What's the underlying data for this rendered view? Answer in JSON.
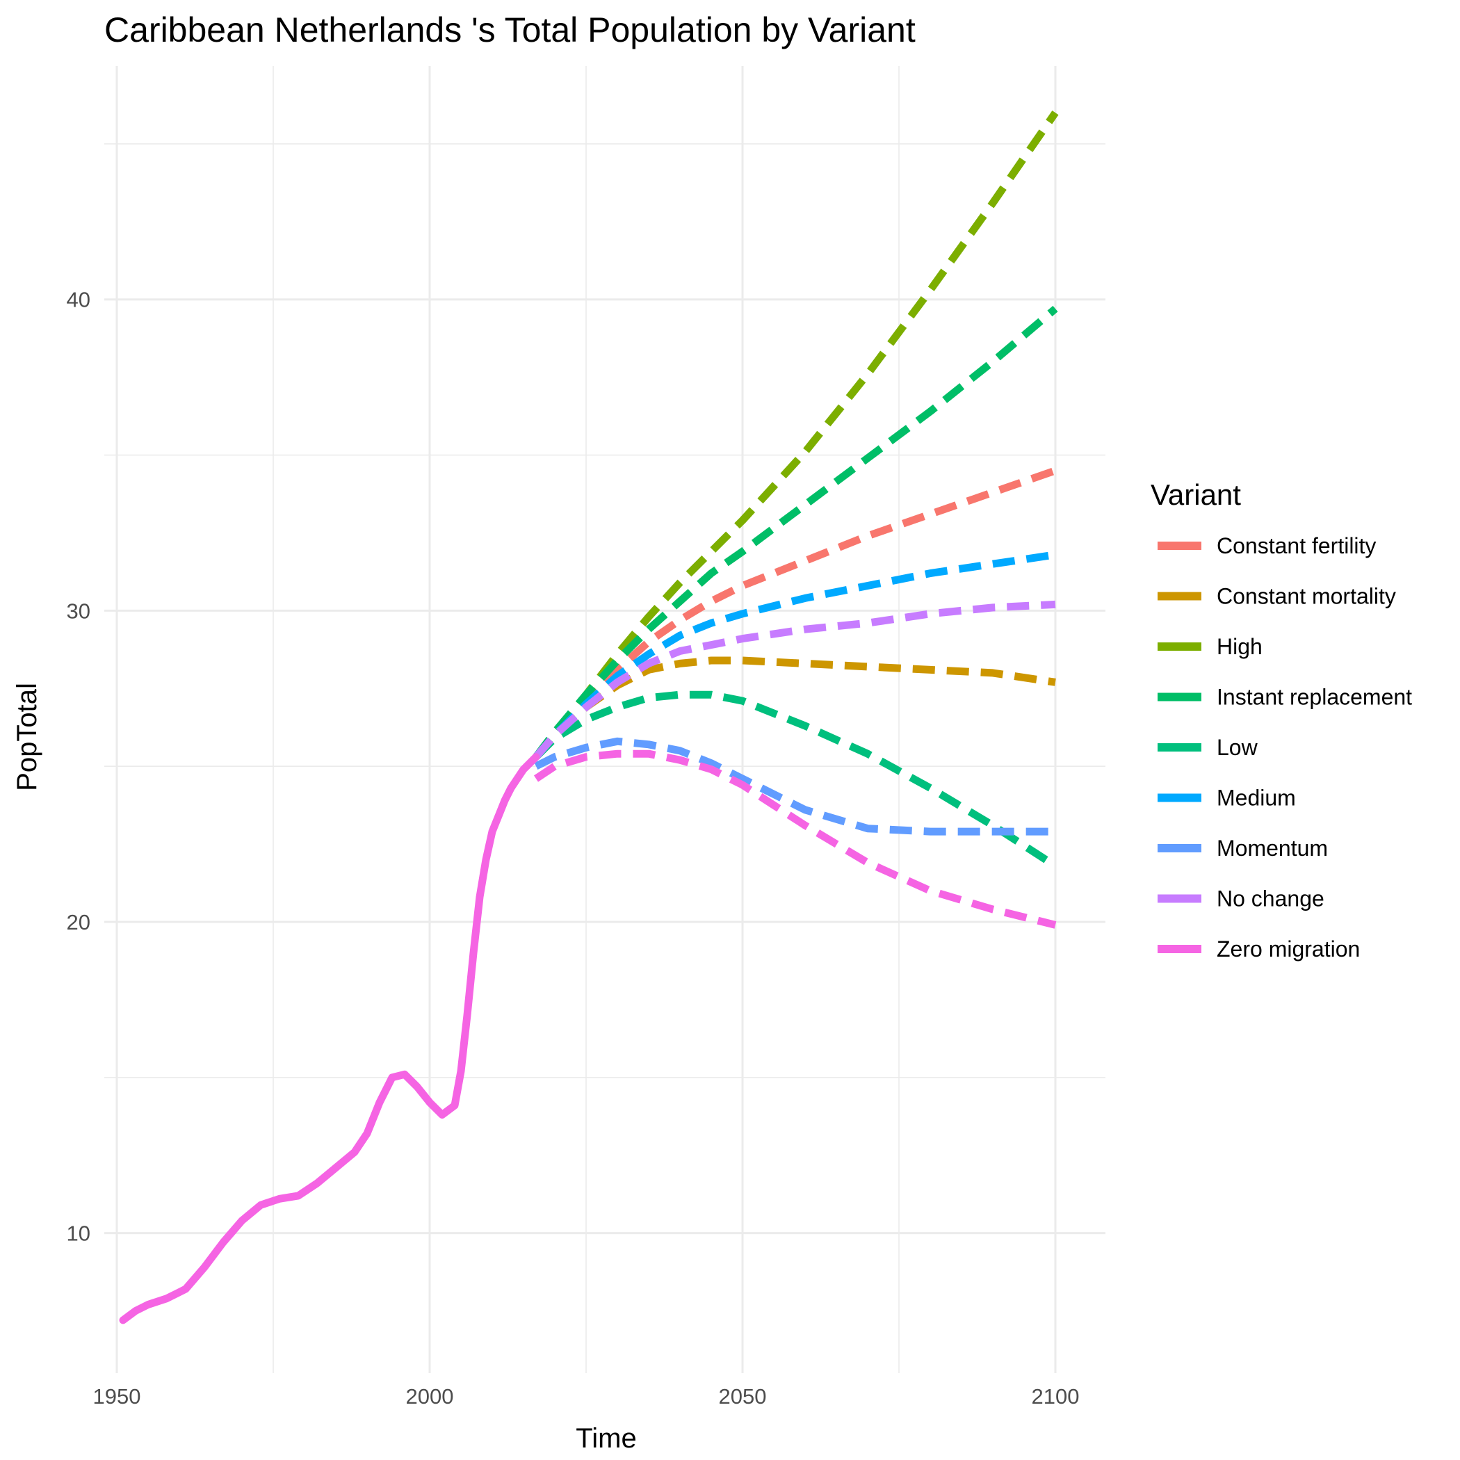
{
  "chart_data": {
    "type": "line",
    "title": "Caribbean Netherlands 's Total Population by Variant",
    "xlabel": "Time",
    "ylabel": "PopTotal",
    "xlim": [
      1948,
      2108
    ],
    "ylim": [
      5.5,
      47.5
    ],
    "x_ticks": [
      1950,
      2000,
      2050,
      2100
    ],
    "x_tick_labels": [
      "1950",
      "2000",
      "2050",
      "2100"
    ],
    "y_ticks": [
      10,
      20,
      30,
      40
    ],
    "y_tick_labels": [
      "10",
      "20",
      "30",
      "40"
    ],
    "grid": true,
    "legend": {
      "title": "Variant",
      "position": "right"
    },
    "historical": {
      "name": "Zero migration",
      "x": [
        1951,
        1953,
        1955,
        1958,
        1961,
        1964,
        1967,
        1970,
        1973,
        1976,
        1979,
        1982,
        1985,
        1988,
        1990,
        1992,
        1994,
        1996,
        1998,
        2000,
        2002,
        2004,
        2005,
        2006,
        2007,
        2008,
        2009,
        2010,
        2011,
        2012,
        2013,
        2014,
        2015,
        2016,
        2017
      ],
      "y": [
        7.2,
        7.5,
        7.7,
        7.9,
        8.2,
        8.9,
        9.7,
        10.4,
        10.9,
        11.1,
        11.2,
        11.6,
        12.1,
        12.6,
        13.2,
        14.2,
        15.0,
        15.1,
        14.7,
        14.2,
        13.8,
        14.1,
        15.2,
        17.0,
        19.0,
        20.8,
        22.0,
        22.9,
        23.4,
        23.9,
        24.3,
        24.6,
        24.9,
        25.1,
        25.3
      ]
    },
    "series": [
      {
        "name": "Constant fertility",
        "color": "#F8766D",
        "x": [
          2017,
          2020,
          2025,
          2030,
          2035,
          2040,
          2045,
          2050,
          2060,
          2070,
          2080,
          2090,
          2100
        ],
        "y": [
          25.3,
          26.0,
          27.1,
          28.1,
          29.0,
          29.7,
          30.3,
          30.8,
          31.6,
          32.4,
          33.1,
          33.8,
          34.5
        ]
      },
      {
        "name": "Constant mortality",
        "color": "#CD9600",
        "x": [
          2017,
          2020,
          2025,
          2030,
          2035,
          2040,
          2045,
          2050,
          2060,
          2070,
          2080,
          2090,
          2100
        ],
        "y": [
          25.3,
          26.0,
          26.9,
          27.6,
          28.1,
          28.3,
          28.4,
          28.4,
          28.3,
          28.2,
          28.1,
          28.0,
          27.7
        ]
      },
      {
        "name": "High",
        "color": "#7CAE00",
        "x": [
          2017,
          2020,
          2025,
          2030,
          2035,
          2040,
          2045,
          2050,
          2060,
          2070,
          2080,
          2090,
          2100
        ],
        "y": [
          25.3,
          26.0,
          27.3,
          28.6,
          29.8,
          30.9,
          31.9,
          32.9,
          35.1,
          37.6,
          40.3,
          43.1,
          46.0
        ]
      },
      {
        "name": "Instant replacement",
        "color": "#00BE67",
        "x": [
          2017,
          2020,
          2025,
          2030,
          2035,
          2040,
          2045,
          2050,
          2060,
          2070,
          2080,
          2090,
          2100
        ],
        "y": [
          25.3,
          26.1,
          27.3,
          28.4,
          29.4,
          30.3,
          31.2,
          31.9,
          33.4,
          34.9,
          36.4,
          38.0,
          39.7
        ]
      },
      {
        "name": "Low",
        "color": "#00BF7D",
        "x": [
          2017,
          2020,
          2025,
          2030,
          2035,
          2040,
          2045,
          2050,
          2060,
          2070,
          2080,
          2090,
          2100
        ],
        "y": [
          25.3,
          25.9,
          26.5,
          26.9,
          27.2,
          27.3,
          27.3,
          27.1,
          26.3,
          25.4,
          24.3,
          23.1,
          21.8
        ]
      },
      {
        "name": "Medium",
        "color": "#00A9FF",
        "x": [
          2017,
          2020,
          2025,
          2030,
          2035,
          2040,
          2045,
          2050,
          2060,
          2070,
          2080,
          2090,
          2100
        ],
        "y": [
          25.3,
          26.0,
          27.0,
          27.9,
          28.6,
          29.2,
          29.6,
          29.9,
          30.4,
          30.8,
          31.2,
          31.5,
          31.8
        ]
      },
      {
        "name": "Momentum",
        "color": "#619CFF",
        "x": [
          2017,
          2020,
          2025,
          2030,
          2035,
          2040,
          2045,
          2050,
          2060,
          2070,
          2080,
          2090,
          2100
        ],
        "y": [
          25.0,
          25.3,
          25.6,
          25.8,
          25.7,
          25.5,
          25.1,
          24.6,
          23.6,
          23.0,
          22.9,
          22.9,
          22.9
        ]
      },
      {
        "name": "No change",
        "color": "#C77CFF",
        "x": [
          2017,
          2020,
          2025,
          2030,
          2035,
          2040,
          2045,
          2050,
          2060,
          2070,
          2080,
          2090,
          2100
        ],
        "y": [
          25.3,
          26.0,
          26.9,
          27.7,
          28.3,
          28.7,
          28.9,
          29.1,
          29.4,
          29.6,
          29.9,
          30.1,
          30.2
        ]
      },
      {
        "name": "Zero migration",
        "color": "#F564E3",
        "x": [
          2017,
          2020,
          2025,
          2030,
          2035,
          2040,
          2045,
          2050,
          2060,
          2070,
          2080,
          2090,
          2100
        ],
        "y": [
          24.6,
          25.0,
          25.3,
          25.4,
          25.4,
          25.2,
          24.9,
          24.4,
          23.1,
          21.9,
          21.0,
          20.4,
          19.9
        ]
      }
    ]
  }
}
